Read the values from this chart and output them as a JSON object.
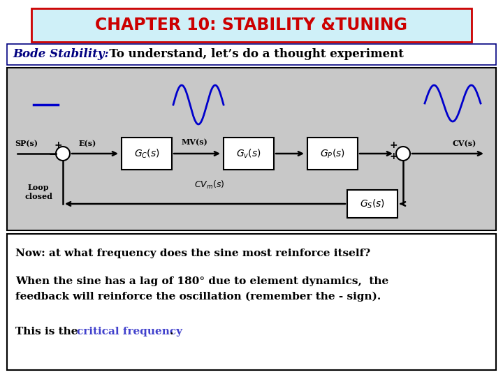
{
  "title": "CHAPTER 10: STABILITY &TUNING",
  "title_color": "#cc0000",
  "title_bg": "#cff0f8",
  "title_border": "#cc0000",
  "bode_label": "Bode Stability:",
  "bode_label_color": "#000080",
  "bode_text": "  To understand, let’s do a thought experiment",
  "diagram_bg": "#c8c8c8",
  "sine_color": "#0000cc",
  "critical_color": "#4040cc",
  "bottom_text_line1": "Now: at what frequency does the sine most reinforce itself?",
  "bottom_text_line2a": "When the sine has a lag of 180° due to element dynamics,  the",
  "bottom_text_line2b": "feedback will reinforce the oscillation (remember the - sign).",
  "bottom_text_line3a": "This is the ",
  "bottom_text_line3b": "critical frequency",
  "bottom_text_line3c": "."
}
